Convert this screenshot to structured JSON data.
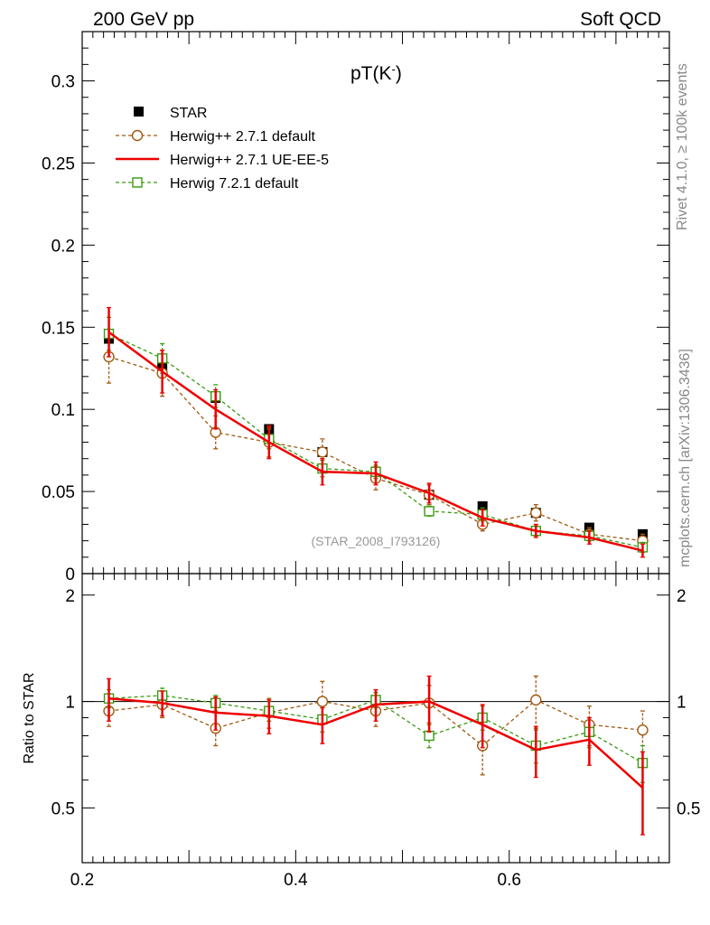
{
  "header": {
    "left": "200 GeV pp",
    "right": "Soft QCD"
  },
  "side": {
    "rivet": "Rivet 4.1.0, ≥ 100k events",
    "mcplots": "mcplots.cern.ch [arXiv:1306.3436]"
  },
  "chart_data": {
    "type": "line",
    "title": "pT(K",
    "title_sup": "-",
    "title_close": ")",
    "analysis": "(STAR_2008_I793126)",
    "ratio_label": "Ratio to STAR",
    "x": [
      0.225,
      0.275,
      0.325,
      0.375,
      0.425,
      0.475,
      0.525,
      0.575,
      0.625,
      0.675,
      0.725
    ],
    "xlim": [
      0.2,
      0.75
    ],
    "ylim": [
      0,
      0.33
    ],
    "ratio_ylim": [
      0.35,
      2.3
    ],
    "x_ticks": [
      "0.2",
      "0.4",
      "0.6"
    ],
    "y_ticks": [
      "0",
      "0.05",
      "0.1",
      "0.15",
      "0.2",
      "0.25",
      "0.3"
    ],
    "ratio_ticks": [
      "0.5",
      "1",
      "2"
    ],
    "series": [
      {
        "name": "STAR",
        "color": "#000000",
        "style": "data",
        "values": [
          0.143,
          0.126,
          0.107,
          0.088,
          0.074,
          0.062,
          0.048,
          0.041,
          0.037,
          0.028,
          0.024
        ],
        "errors": [
          0,
          0,
          0,
          0,
          0,
          0,
          0,
          0,
          0,
          0,
          0
        ]
      },
      {
        "name": "Herwig++ 2.7.1 default",
        "color": "#a05a10",
        "style": "dashed-circle",
        "values": [
          0.132,
          0.122,
          0.086,
          0.08,
          0.074,
          0.058,
          0.048,
          0.03,
          0.037,
          0.024,
          0.02
        ],
        "errors": [
          0.016,
          0.014,
          0.01,
          0.009,
          0.008,
          0.007,
          0.006,
          0.004,
          0.005,
          0.004,
          0.004
        ],
        "ratio": [
          0.94,
          0.98,
          0.84,
          0.93,
          1.0,
          0.94,
          0.99,
          0.75,
          1.01,
          0.86,
          0.83
        ],
        "ratio_errors": [
          0.09,
          0.08,
          0.09,
          0.09,
          0.14,
          0.09,
          0.12,
          0.13,
          0.17,
          0.11,
          0.11
        ]
      },
      {
        "name": "Herwig++ 2.7.1 UE-EE-5",
        "color": "#ee0000",
        "style": "solid",
        "values": [
          0.147,
          0.123,
          0.1,
          0.08,
          0.062,
          0.061,
          0.049,
          0.034,
          0.026,
          0.022,
          0.014
        ],
        "errors": [
          0.015,
          0.013,
          0.012,
          0.01,
          0.008,
          0.007,
          0.006,
          0.005,
          0.004,
          0.004,
          0.004
        ],
        "ratio": [
          1.02,
          0.99,
          0.93,
          0.91,
          0.86,
          0.98,
          1.0,
          0.86,
          0.73,
          0.78,
          0.57
        ],
        "ratio_errors": [
          0.14,
          0.08,
          0.1,
          0.1,
          0.1,
          0.1,
          0.18,
          0.12,
          0.12,
          0.12,
          0.15
        ]
      },
      {
        "name": "Herwig 7.2.1 default",
        "color": "#3a9a10",
        "style": "dashed-square",
        "values": [
          0.146,
          0.131,
          0.108,
          0.082,
          0.064,
          0.062,
          0.038,
          0.036,
          0.026,
          0.023,
          0.016
        ],
        "errors": [
          0.01,
          0.009,
          0.007,
          0.006,
          0.005,
          0.004,
          0.003,
          0.004,
          0.003,
          0.003,
          0.003
        ],
        "ratio": [
          1.02,
          1.04,
          0.99,
          0.94,
          0.89,
          1.01,
          0.8,
          0.9,
          0.75,
          0.82,
          0.67
        ],
        "ratio_errors": [
          0.06,
          0.05,
          0.05,
          0.06,
          0.07,
          0.05,
          0.06,
          0.07,
          0.08,
          0.08,
          0.08
        ]
      }
    ]
  }
}
